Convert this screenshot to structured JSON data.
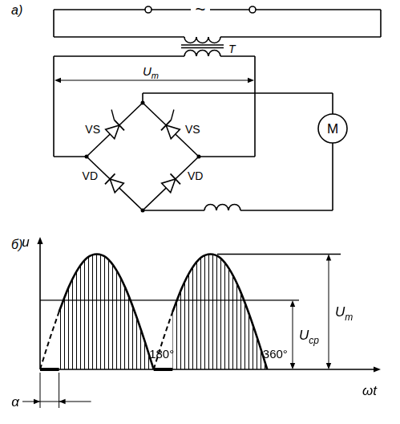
{
  "circuit": {
    "label": "а)",
    "source": "~",
    "transformer": "T",
    "voltage": {
      "symbol": "U",
      "subscript": "m"
    },
    "thyristors": [
      "VS",
      "VS"
    ],
    "diodes": [
      "VD",
      "VD"
    ],
    "motor": "M"
  },
  "chart_data": {
    "label": "б)",
    "type": "line",
    "y_label": "u",
    "x_label": "ωt",
    "xlim": [
      0,
      540
    ],
    "ylim": [
      0,
      1.15
    ],
    "xticks": [
      {
        "value": 180,
        "label": "180°"
      },
      {
        "value": 360,
        "label": "360°"
      }
    ],
    "tick_labels": "x",
    "grid": false,
    "alpha": {
      "label": "α",
      "value": 30
    },
    "levels": [
      {
        "symbol": "U",
        "subscript": "m",
        "value": 1
      },
      {
        "symbol": "U",
        "subscript": "ср",
        "value": 0.6
      }
    ],
    "series": [
      {
        "line_style": "dashed",
        "x": [
          0,
          15,
          30
        ],
        "values": [
          0,
          0.26,
          0.5
        ]
      },
      {
        "line_style": "solid",
        "x": [
          30,
          45,
          60,
          75,
          90,
          105,
          120,
          135,
          150,
          165,
          180
        ],
        "values": [
          0.5,
          0.71,
          0.87,
          0.97,
          1,
          0.97,
          0.87,
          0.71,
          0.5,
          0.26,
          0
        ]
      },
      {
        "line_style": "dashed",
        "x": [
          180,
          195,
          210
        ],
        "values": [
          0,
          0.26,
          0.5
        ]
      },
      {
        "line_style": "solid",
        "x": [
          210,
          225,
          240,
          255,
          270,
          285,
          300,
          315,
          330,
          345,
          360
        ],
        "values": [
          0.5,
          0.71,
          0.87,
          0.97,
          1,
          0.97,
          0.87,
          0.71,
          0.5,
          0.26,
          0
        ]
      }
    ]
  }
}
